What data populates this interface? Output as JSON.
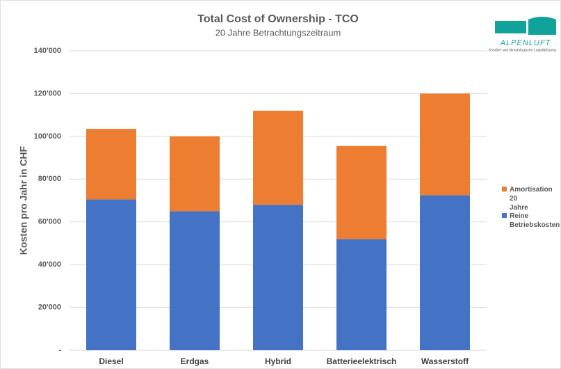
{
  "chart_data": {
    "type": "stacked_bar",
    "title": "Total Cost of Ownership - TCO",
    "subtitle": "20 Jahre Betrachtungszeitraum",
    "y_label": "Kosten pro Jahr in CHF",
    "categories": [
      "Diesel",
      "Erdgas",
      "Hybrid",
      "Batterieelektrisch",
      "Wasserstoff"
    ],
    "series": [
      {
        "name": "Reine Betriebskosten",
        "color": "#4472c4",
        "values": [
          70500,
          65000,
          68000,
          52000,
          72500
        ]
      },
      {
        "name": "Amortisation 20 Jahre",
        "color": "#ed7d31",
        "values": [
          33000,
          35000,
          44000,
          43500,
          47500
        ]
      }
    ],
    "ylim": [
      0,
      140000
    ],
    "yticks": [
      {
        "value": 0,
        "label": "-"
      },
      {
        "value": 20000,
        "label": "20'000"
      },
      {
        "value": 40000,
        "label": "40'000"
      },
      {
        "value": 60000,
        "label": "60'000"
      },
      {
        "value": 80000,
        "label": "80'000"
      },
      {
        "value": 100000,
        "label": "100'000"
      },
      {
        "value": 120000,
        "label": "120'000"
      },
      {
        "value": 140000,
        "label": "140'000"
      }
    ],
    "grid": true,
    "legend": "right"
  },
  "logo": {
    "name": "ALPENLUFT",
    "tagline": "Kreative und klimatologische Logistiklösung"
  }
}
